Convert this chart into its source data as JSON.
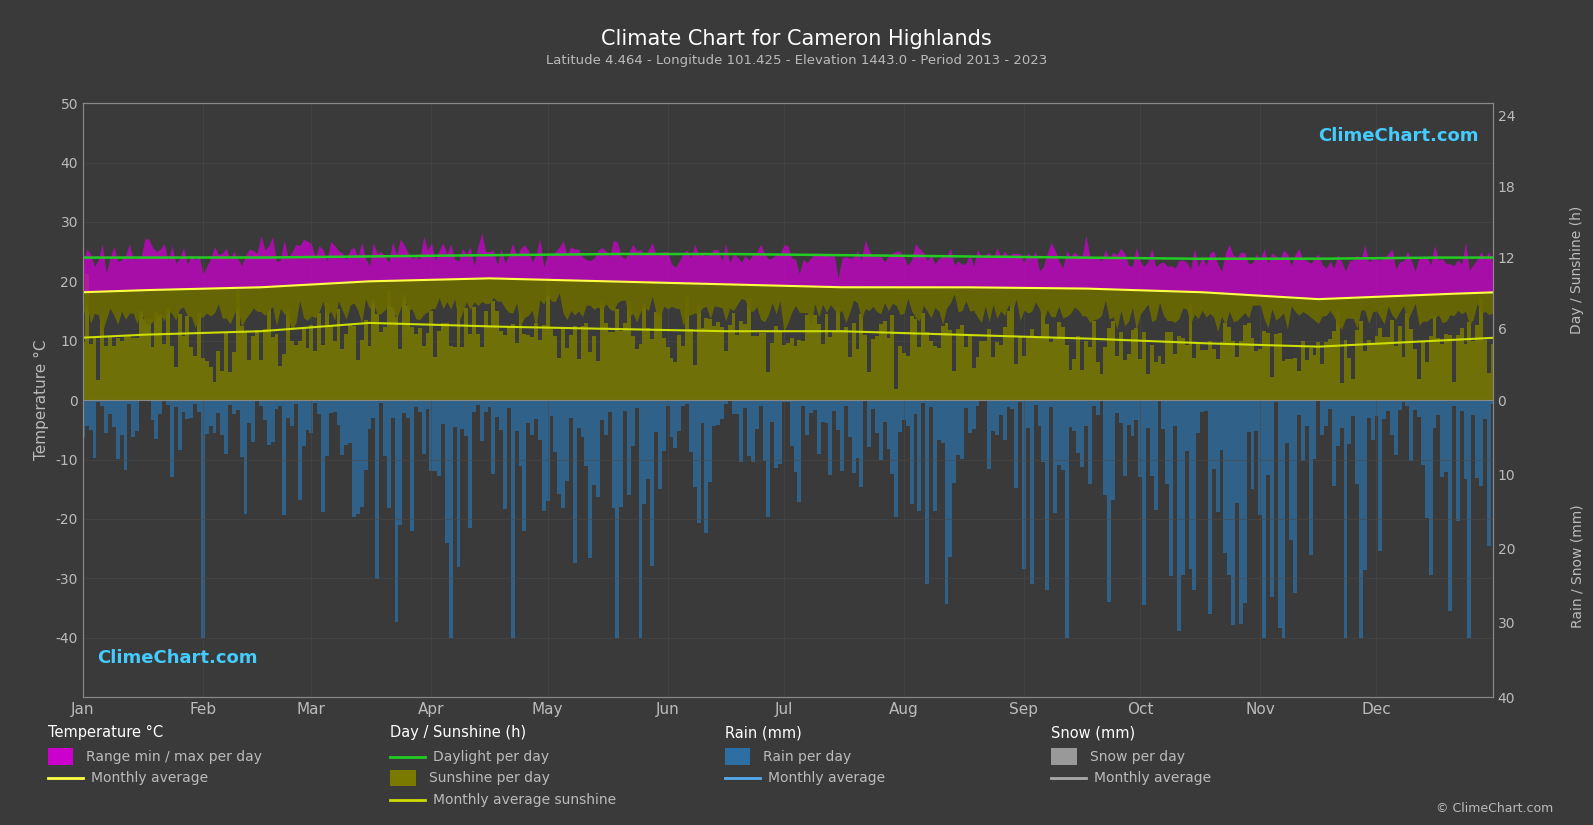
{
  "title": "Climate Chart for Cameron Highlands",
  "subtitle": "Latitude 4.464 - Longitude 101.425 - Elevation 1443.0 - Period 2013 - 2023",
  "bg_color": "#3a3a3a",
  "grid_color": "#4a4a4a",
  "text_color": "#bbbbbb",
  "ylabel_left": "Temperature °C",
  "ylabel_right_top": "Day / Sunshine (h)",
  "ylabel_right_bottom": "Rain / Snow (mm)",
  "ylim_left": [
    -50,
    50
  ],
  "months": [
    "Jan",
    "Feb",
    "Mar",
    "Apr",
    "May",
    "Jun",
    "Jul",
    "Aug",
    "Sep",
    "Oct",
    "Nov",
    "Dec"
  ],
  "month_centers_day": [
    15,
    46,
    74,
    105,
    135,
    166,
    196,
    227,
    258,
    288,
    319,
    349
  ],
  "month_starts_day": [
    0,
    31,
    59,
    90,
    120,
    151,
    181,
    212,
    243,
    273,
    304,
    334
  ],
  "days_in_year": 365,
  "temp_max_monthly": [
    24.5,
    24.8,
    25.2,
    25.0,
    24.8,
    24.5,
    24.3,
    24.5,
    24.2,
    24.0,
    23.8,
    24.0
  ],
  "temp_min_monthly": [
    14.2,
    14.5,
    15.0,
    15.5,
    15.3,
    15.0,
    14.8,
    14.8,
    14.5,
    14.2,
    13.8,
    14.0
  ],
  "temp_avg_monthly": [
    18.5,
    19.0,
    20.0,
    20.5,
    20.0,
    19.5,
    19.0,
    19.0,
    18.8,
    18.2,
    17.0,
    17.8
  ],
  "sunshine_monthly_h": [
    5.5,
    5.8,
    6.5,
    6.2,
    6.0,
    5.8,
    5.8,
    5.5,
    5.2,
    4.8,
    4.5,
    5.0
  ],
  "daylight_monthly_h": [
    12.0,
    12.0,
    12.1,
    12.2,
    12.3,
    12.3,
    12.2,
    12.1,
    12.0,
    11.9,
    11.9,
    12.0
  ],
  "rain_monthly_mm": [
    90,
    130,
    200,
    280,
    280,
    160,
    140,
    180,
    230,
    350,
    380,
    200
  ],
  "month_days": [
    31,
    28,
    31,
    30,
    31,
    30,
    31,
    31,
    30,
    31,
    30,
    31
  ],
  "rain_color": "#2d6fa3",
  "temp_band_magenta": "#cc00cc",
  "temp_band_olive": "#8a8a00",
  "daylight_line_color": "#22cc22",
  "temp_avg_line_color": "#ffff44",
  "sunshine_avg_line_color": "#ccdd00",
  "rain_avg_line_color": "#55aaee",
  "snow_avg_line_color": "#aaaaaa",
  "right_axis_sunshine_ticks_h": [
    0,
    6,
    12,
    18,
    24
  ],
  "right_axis_rain_ticks_mm": [
    0,
    10,
    20,
    30,
    40
  ],
  "left_axis_ticks": [
    -40,
    -30,
    -20,
    -10,
    0,
    10,
    20,
    30,
    40,
    50
  ]
}
